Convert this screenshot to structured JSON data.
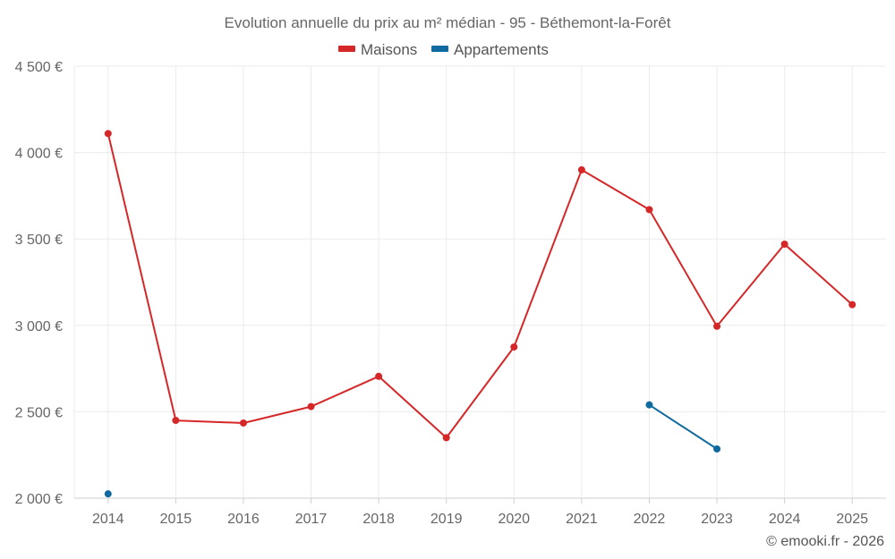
{
  "chart_data": {
    "type": "line",
    "title": "Evolution annuelle du prix au m² médian - 95 - Béthemont-la-Forêt",
    "x": [
      "2014",
      "2015",
      "2016",
      "2017",
      "2018",
      "2019",
      "2020",
      "2021",
      "2022",
      "2023",
      "2024",
      "2025"
    ],
    "series": [
      {
        "name": "Maisons",
        "color": "#d62728",
        "values": [
          4110,
          2450,
          2435,
          2530,
          2705,
          2350,
          2875,
          3900,
          3670,
          2995,
          3470,
          3120
        ]
      },
      {
        "name": "Appartements",
        "color": "#0f6aa0",
        "values": [
          2025,
          null,
          null,
          null,
          null,
          null,
          null,
          null,
          2540,
          2285,
          null,
          null
        ]
      }
    ],
    "ylim": [
      2000,
      4500
    ],
    "yticks": [
      2000,
      2500,
      3000,
      3500,
      4000,
      4500
    ],
    "ytick_labels": [
      "2 000 €",
      "2 500 €",
      "3 000 €",
      "3 500 €",
      "4 000 €",
      "4 500 €"
    ],
    "xlabel": "",
    "ylabel": "",
    "grid": true,
    "legend_position": "top-center"
  },
  "credit": "© emooki.fr - 2026"
}
